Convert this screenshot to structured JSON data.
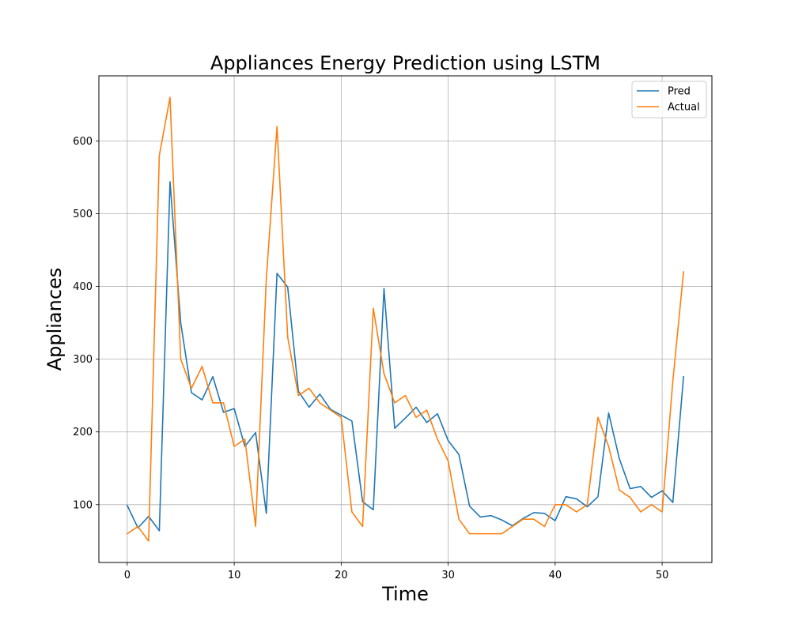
{
  "chart_data": {
    "type": "line",
    "title": "Appliances Energy Prediction using LSTM",
    "xlabel": "Time",
    "ylabel": "Appliances",
    "xlim": [
      -2.65,
      54.65
    ],
    "ylim": [
      20.5,
      689.5
    ],
    "xticks": [
      0,
      10,
      20,
      30,
      40,
      50
    ],
    "yticks": [
      100,
      200,
      300,
      400,
      500,
      600
    ],
    "grid": true,
    "legend_position": "upper right",
    "x": [
      0,
      1,
      2,
      3,
      4,
      5,
      6,
      7,
      8,
      9,
      10,
      11,
      12,
      13,
      14,
      15,
      16,
      17,
      18,
      19,
      20,
      21,
      22,
      23,
      24,
      25,
      26,
      27,
      28,
      29,
      30,
      31,
      32,
      33,
      34,
      35,
      36,
      37,
      38,
      39,
      40,
      41,
      42,
      43,
      44,
      45,
      46,
      47,
      48,
      49,
      50,
      51,
      52
    ],
    "series": [
      {
        "name": "Pred",
        "color": "#1f77b4",
        "values": [
          99,
          68,
          84,
          64,
          544,
          350,
          254,
          244,
          276,
          227,
          232,
          180,
          199,
          88,
          418,
          399,
          256,
          234,
          252,
          231,
          223,
          215,
          104,
          93,
          397,
          205,
          219,
          234,
          213,
          225,
          188,
          169,
          98,
          83,
          85,
          79,
          71,
          81,
          89,
          88,
          78,
          111,
          108,
          97,
          111,
          226,
          163,
          122,
          125,
          110,
          119,
          103,
          276
        ]
      },
      {
        "name": "Actual",
        "color": "#ff7f0e",
        "values": [
          60,
          70,
          50,
          580,
          660,
          300,
          260,
          290,
          240,
          240,
          180,
          190,
          70,
          410,
          620,
          330,
          250,
          260,
          240,
          230,
          220,
          90,
          70,
          370,
          280,
          240,
          250,
          220,
          230,
          190,
          160,
          80,
          60,
          60,
          60,
          60,
          70,
          80,
          80,
          70,
          100,
          100,
          90,
          100,
          220,
          180,
          120,
          110,
          90,
          100,
          90,
          270,
          420
        ]
      }
    ]
  }
}
